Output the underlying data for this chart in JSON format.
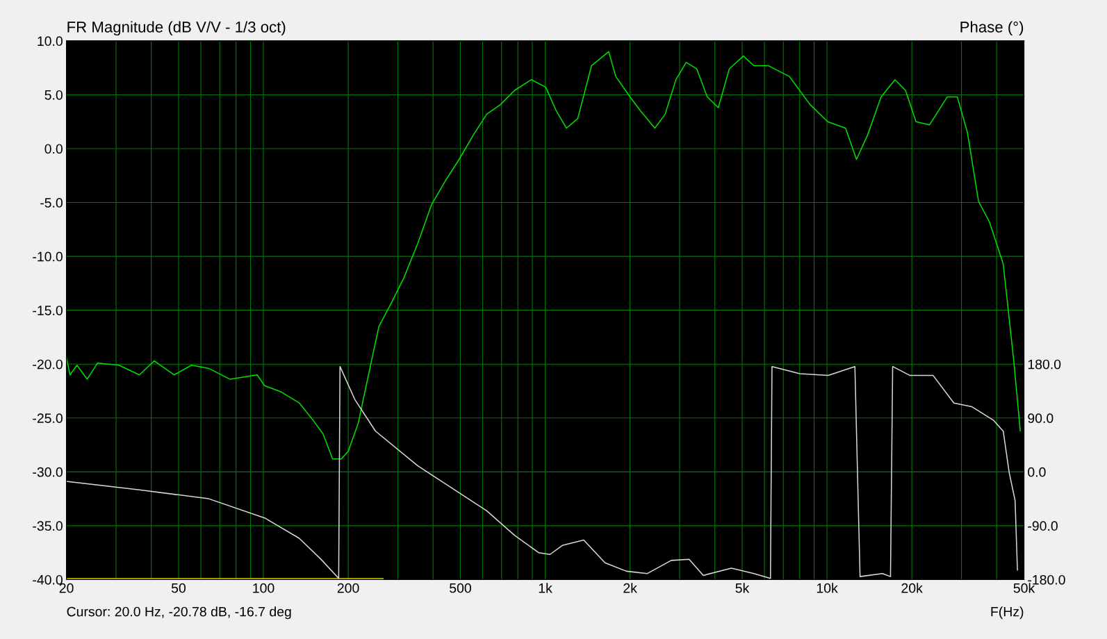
{
  "chart_data": {
    "type": "line",
    "title": "FR Magnitude (dB V/V - 1/3 oct)",
    "xlabel": "F(Hz)",
    "y2label": "Phase (°)",
    "annotations": [
      "Cursor: 20.0 Hz, -20.78 dB, -16.7 deg"
    ],
    "log": "x",
    "grid": true,
    "marker": "none",
    "line_style": "solid",
    "xlim": [
      20,
      50000
    ],
    "ylim": [
      -40,
      10
    ],
    "y2lim": [
      -180,
      720
    ],
    "xticks": [
      20,
      {
        "value": 30,
        "label": null
      },
      {
        "value": 40,
        "label": null
      },
      50,
      {
        "value": 60,
        "label": null
      },
      {
        "value": 70,
        "label": null
      },
      {
        "value": 80,
        "label": null
      },
      {
        "value": 90,
        "label": null
      },
      100,
      200,
      {
        "value": 300,
        "label": null
      },
      {
        "value": 400,
        "label": null
      },
      500,
      {
        "value": 600,
        "label": null
      },
      {
        "value": 700,
        "label": null
      },
      {
        "value": 800,
        "label": null
      },
      {
        "value": 900,
        "label": null
      },
      {
        "value": 1000,
        "label": "1k"
      },
      {
        "value": 2000,
        "label": "2k"
      },
      {
        "value": 3000,
        "label": null
      },
      {
        "value": 4000,
        "label": null
      },
      {
        "value": 5000,
        "label": "5k"
      },
      {
        "value": 6000,
        "label": null
      },
      {
        "value": 7000,
        "label": null
      },
      {
        "value": 8000,
        "label": null
      },
      {
        "value": 9000,
        "label": null
      },
      {
        "value": 10000,
        "label": "10k"
      },
      {
        "value": 20000,
        "label": "20k"
      },
      {
        "value": 30000,
        "label": null
      },
      {
        "value": 40000,
        "label": null
      },
      {
        "value": 50000,
        "label": "50k"
      }
    ],
    "yticks": [
      {
        "value": -40,
        "label": "-40.0"
      },
      {
        "value": -35,
        "label": "-35.0"
      },
      {
        "value": -30,
        "label": "-30.0"
      },
      {
        "value": -25,
        "label": "-25.0"
      },
      {
        "value": -20,
        "label": "-20.0"
      },
      {
        "value": -15,
        "label": "-15.0"
      },
      {
        "value": -10,
        "label": "-10.0"
      },
      {
        "value": -5,
        "label": "-5.0"
      },
      {
        "value": 0,
        "label": "0.0"
      },
      {
        "value": 5,
        "label": "5.0"
      },
      {
        "value": 10,
        "label": "10.0"
      }
    ],
    "y2ticks": [
      {
        "value": -180,
        "label": "-180.0"
      },
      {
        "value": -90,
        "label": "-90.0"
      },
      {
        "value": 0,
        "label": "0.0"
      },
      {
        "value": 90,
        "label": "90.0"
      },
      {
        "value": 180,
        "label": "180.0"
      }
    ],
    "series": [
      {
        "color": "#00e000",
        "x": [
          20,
          20.6,
          21.8,
          23.7,
          25.8,
          30.7,
          36.3,
          41,
          48.2,
          55.6,
          64,
          76,
          95,
          101,
          116,
          134,
          150,
          163,
          176,
          189,
          200,
          217,
          236,
          257,
          281,
          315,
          353,
          395,
          442,
          495,
          554,
          620,
          695,
          778,
          893,
          1005,
          1095,
          1190,
          1305,
          1460,
          1680,
          1780,
          2000,
          2180,
          2450,
          2665,
          2910,
          3165,
          3450,
          3760,
          4115,
          4500,
          5050,
          5500,
          6200,
          7350,
          8700,
          10060,
          11640,
          12720,
          13900,
          15560,
          17430,
          19000,
          20700,
          23100,
          26700,
          29000,
          31500,
          34500,
          37700,
          42200,
          46000,
          48500
        ],
        "values": [
          -19.4,
          -21.0,
          -20.1,
          -21.4,
          -19.9,
          -20.1,
          -21.0,
          -19.7,
          -21.0,
          -20.1,
          -20.4,
          -21.4,
          -21.0,
          -22.0,
          -22.6,
          -23.6,
          -25.2,
          -26.5,
          -28.8,
          -28.8,
          -28.1,
          -25.5,
          -21.0,
          -16.5,
          -14.6,
          -12.0,
          -8.8,
          -5.2,
          -3.0,
          -1.0,
          1.2,
          3.2,
          4.1,
          5.4,
          6.4,
          5.7,
          3.5,
          1.9,
          2.8,
          7.7,
          9.0,
          6.7,
          4.8,
          3.5,
          1.9,
          3.2,
          6.4,
          8.0,
          7.4,
          4.8,
          3.8,
          7.4,
          8.6,
          7.7,
          7.7,
          6.7,
          4.1,
          2.5,
          1.9,
          -1.0,
          1.2,
          4.8,
          6.4,
          5.4,
          2.5,
          2.2,
          4.8,
          4.8,
          1.5,
          -4.9,
          -6.8,
          -10.7,
          -19.7,
          -26.2
        ]
      },
      {
        "color": "#d8d8d8",
        "axis": "y2",
        "x": [
          20,
          36.3,
          64,
          101,
          134,
          160,
          185,
          187,
          211,
          250,
          353,
          620,
          778,
          948,
          1040,
          1150,
          1370,
          1630,
          1940,
          2300,
          2800,
          3240,
          3640,
          4580,
          5500,
          6300,
          6380,
          8000,
          10100,
          12560,
          13100,
          15730,
          16800,
          17100,
          19700,
          23800,
          28200,
          32600,
          39000,
          42200,
          44300,
          46500,
          47400
        ],
        "values": [
          -16,
          -30,
          -45,
          -77,
          -111,
          -146,
          -178,
          176,
          121,
          68,
          10,
          -65,
          -106,
          -135,
          -138,
          -123,
          -114,
          -152,
          -166,
          -170,
          -148,
          -146,
          -173,
          -161,
          -170,
          -178,
          176,
          164,
          161,
          176,
          -175,
          -170,
          -175,
          176,
          161,
          161,
          115,
          109,
          86,
          68,
          -1,
          -48,
          -164
        ]
      },
      {
        "color": "#d0d000",
        "x": [
          20,
          266
        ],
        "values": [
          -39.9,
          -39.9
        ]
      }
    ]
  }
}
